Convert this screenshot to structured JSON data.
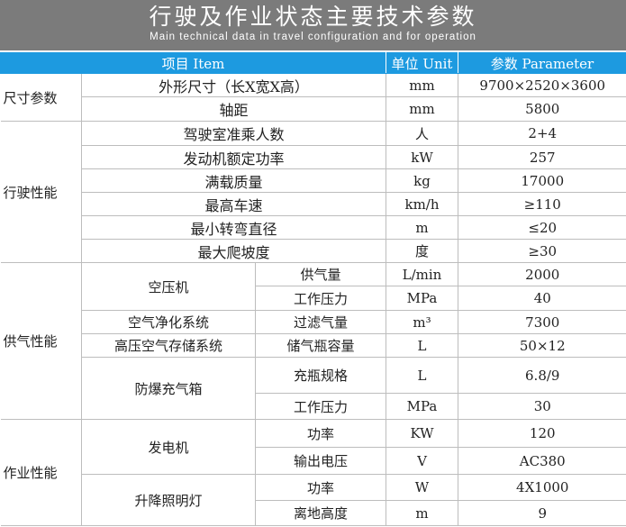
{
  "title": "行驶及作业状态主要技术参数",
  "subtitle": "Main technical data in travel configuration and for operation",
  "header": {
    "item": "项目 Item",
    "unit": "单位 Unit",
    "parameter": "参数 Parameter"
  },
  "sections": [
    {
      "name": "尺寸参数",
      "groups": [
        {
          "item": "外形尺寸（长X宽X高）",
          "rows": [
            {
              "sub": "",
              "unit": "mm",
              "value": "9700×2520×3600"
            }
          ]
        },
        {
          "item": "轴距",
          "rows": [
            {
              "sub": "",
              "unit": "mm",
              "value": "5800"
            }
          ]
        }
      ]
    },
    {
      "name": "行驶性能",
      "groups": [
        {
          "item": "驾驶室准乘人数",
          "rows": [
            {
              "sub": "",
              "unit": "人",
              "value": "2+4"
            }
          ]
        },
        {
          "item": "发动机额定功率",
          "rows": [
            {
              "sub": "",
              "unit": "kW",
              "value": "257"
            }
          ]
        },
        {
          "item": "满载质量",
          "rows": [
            {
              "sub": "",
              "unit": "kg",
              "value": "17000"
            }
          ]
        },
        {
          "item": "最高车速",
          "rows": [
            {
              "sub": "",
              "unit": "km/h",
              "value": "≥110"
            }
          ]
        },
        {
          "item": "最小转弯直径",
          "rows": [
            {
              "sub": "",
              "unit": "m",
              "value": "≤20"
            }
          ]
        },
        {
          "item": "最大爬坡度",
          "rows": [
            {
              "sub": "",
              "unit": "度",
              "value": "≥30"
            }
          ]
        }
      ]
    },
    {
      "name": "供气性能",
      "groups": [
        {
          "item": "空压机",
          "rows": [
            {
              "sub": "供气量",
              "unit": "L/min",
              "value": "2000"
            },
            {
              "sub": "工作压力",
              "unit": "MPa",
              "value": "40"
            }
          ]
        },
        {
          "item": "空气净化系统",
          "rows": [
            {
              "sub": "过滤气量",
              "unit": "m³",
              "value": "7300"
            }
          ]
        },
        {
          "item": "高压空气存储系统",
          "rows": [
            {
              "sub": "储气瓶容量",
              "unit": "L",
              "value": "50×12"
            }
          ]
        },
        {
          "item": "防爆充气箱",
          "rows": [
            {
              "sub": "充瓶规格",
              "unit": "L",
              "value": "6.8/9"
            },
            {
              "sub": "工作压力",
              "unit": "MPa",
              "value": "30"
            }
          ]
        }
      ]
    },
    {
      "name": "作业性能",
      "groups": [
        {
          "item": "发电机",
          "rows": [
            {
              "sub": "功率",
              "unit": "KW",
              "value": "120"
            },
            {
              "sub": "输出电压",
              "unit": "V",
              "value": "AC380"
            }
          ]
        },
        {
          "item": "升降照明灯",
          "rows": [
            {
              "sub": "功率",
              "unit": "W",
              "value": "4X1000"
            },
            {
              "sub": "离地高度",
              "unit": "m",
              "value": "9"
            }
          ]
        }
      ]
    }
  ]
}
